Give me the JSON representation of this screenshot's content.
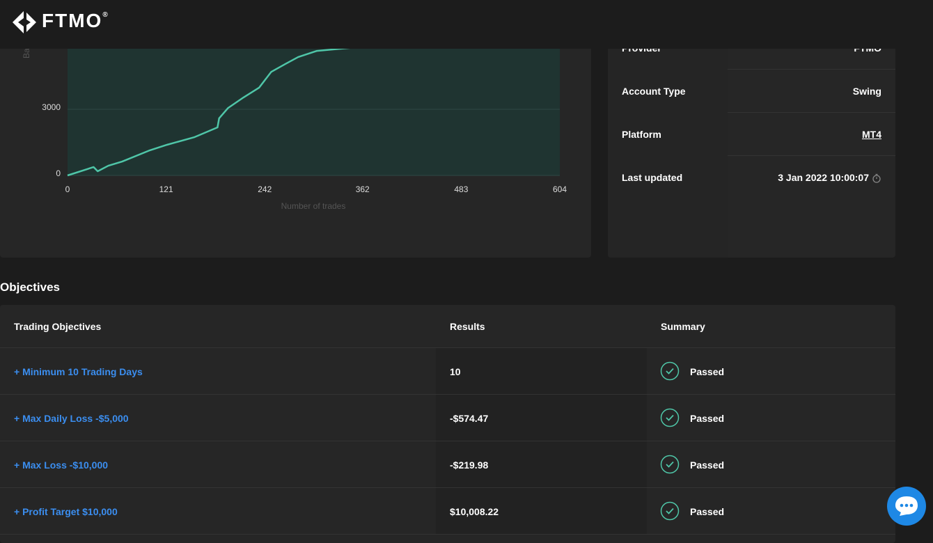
{
  "header": {
    "logo": "FTMO",
    "logo_mark": "®"
  },
  "chart_data": {
    "type": "line",
    "x_label": "Number of trades",
    "y_label": "Balance",
    "x": [
      0,
      32,
      37,
      50,
      67,
      101,
      122,
      156,
      184,
      186,
      197,
      216,
      235,
      250,
      267,
      283,
      306,
      336,
      354
    ],
    "values": [
      0,
      380,
      190,
      440,
      630,
      1140,
      1390,
      1740,
      2180,
      2590,
      3060,
      3540,
      3980,
      4700,
      5050,
      5370,
      5650,
      5750,
      5810
    ],
    "color": "#4fc6a8",
    "xlim": [
      0,
      604
    ],
    "xticks": [
      0,
      121,
      242,
      362,
      483,
      604
    ],
    "ylim": [
      0,
      6000
    ],
    "yticks": [
      0,
      3000
    ],
    "grid": true
  },
  "account_info": {
    "rows": [
      [
        "Provider",
        "FTMO"
      ],
      [
        "Account Type",
        "Swing"
      ],
      [
        "Platform",
        "MT4"
      ],
      [
        "Last updated",
        "3 Jan 2022 10:00:07"
      ]
    ]
  },
  "objectives": {
    "title": "Objectives",
    "columns": [
      "Trading Objectives",
      "Results",
      "Summary"
    ],
    "rows": [
      [
        "+ Minimum 10 Trading Days",
        "10",
        "Passed"
      ],
      [
        "+ Max Daily Loss -$5,000",
        "-$574.47",
        "Passed"
      ],
      [
        "+ Max Loss -$10,000",
        "-$219.98",
        "Passed"
      ],
      [
        "+ Profit Target $10,000",
        "$10,008.22",
        "Passed"
      ]
    ]
  }
}
